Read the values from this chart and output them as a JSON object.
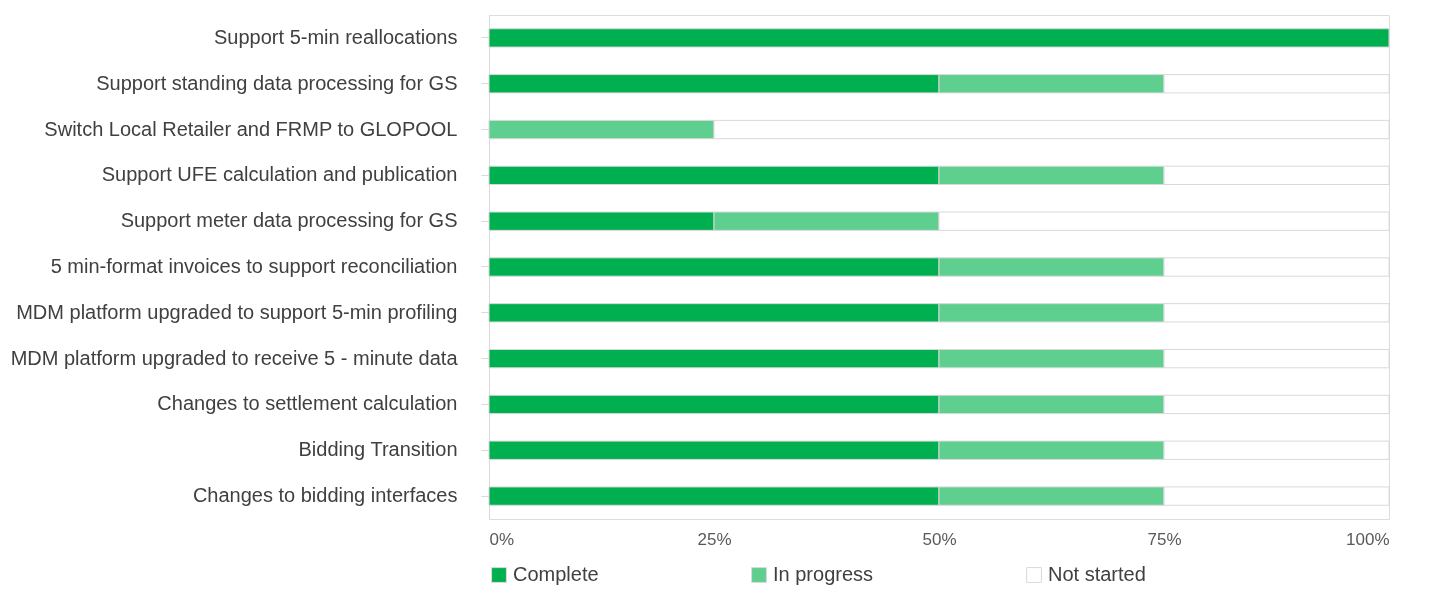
{
  "chart_data": {
    "type": "bar",
    "orientation": "horizontal",
    "stacked": true,
    "categories": [
      "Support 5-min reallocations",
      "Support standing data processing for GS",
      "Switch Local Retailer and FRMP to GLOPOOL",
      "Support UFE calculation and publication",
      "Support meter data processing for GS",
      "5 min-format invoices to support reconciliation",
      "MDM platform upgraded to support 5-min profiling",
      "MDM platform upgraded to receive 5 - minute data",
      "Changes to settlement calculation",
      "Bidding Transition",
      "Changes to bidding interfaces"
    ],
    "series": [
      {
        "name": "Complete",
        "color": "#00b050",
        "values": [
          100,
          50,
          0,
          50,
          25,
          50,
          50,
          50,
          50,
          50,
          50
        ]
      },
      {
        "name": "In progress",
        "color": "#5fcf8f",
        "values": [
          0,
          25,
          25,
          25,
          25,
          25,
          25,
          25,
          25,
          25,
          25
        ]
      },
      {
        "name": "Not started",
        "color": "#ffffff",
        "values": [
          0,
          25,
          75,
          25,
          50,
          25,
          25,
          25,
          25,
          25,
          25
        ]
      }
    ],
    "xlim": [
      0,
      100
    ],
    "xticks": [
      {
        "value": 0,
        "label": "0%"
      },
      {
        "value": 25,
        "label": "25%"
      },
      {
        "value": 50,
        "label": "50%"
      },
      {
        "value": 75,
        "label": "75%"
      },
      {
        "value": 100,
        "label": "100%"
      }
    ],
    "grid": false,
    "legend": "bottom"
  }
}
